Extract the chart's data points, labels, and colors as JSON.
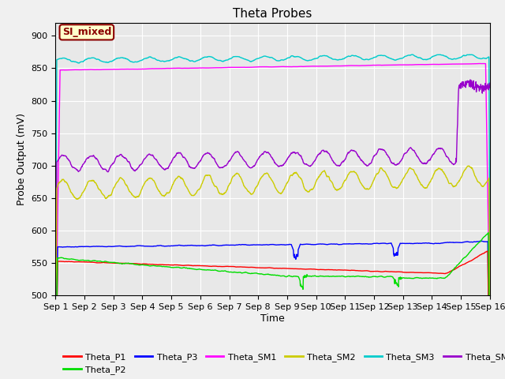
{
  "title": "Theta Probes",
  "xlabel": "Time",
  "ylabel": "Probe Output (mV)",
  "xlim": [
    0,
    15
  ],
  "ylim": [
    500,
    920
  ],
  "yticks": [
    500,
    550,
    600,
    650,
    700,
    750,
    800,
    850,
    900
  ],
  "xtick_labels": [
    "Sep 1",
    "Sep 2",
    "Sep 3",
    "Sep 4",
    "Sep 5",
    "Sep 6",
    "Sep 7",
    "Sep 8",
    "Sep 9",
    "Sep 10",
    "Sep 11",
    "Sep 12",
    "Sep 13",
    "Sep 14",
    "Sep 15",
    "Sep 16"
  ],
  "annotation": "SI_mixed",
  "background_color": "#e8e8e8",
  "colors": {
    "Theta_P1": "#ff0000",
    "Theta_P2": "#00dd00",
    "Theta_P3": "#0000ff",
    "Theta_SM1": "#ff00ff",
    "Theta_SM2": "#cccc00",
    "Theta_SM3": "#00cccc",
    "Theta_SM4": "#9900cc"
  }
}
